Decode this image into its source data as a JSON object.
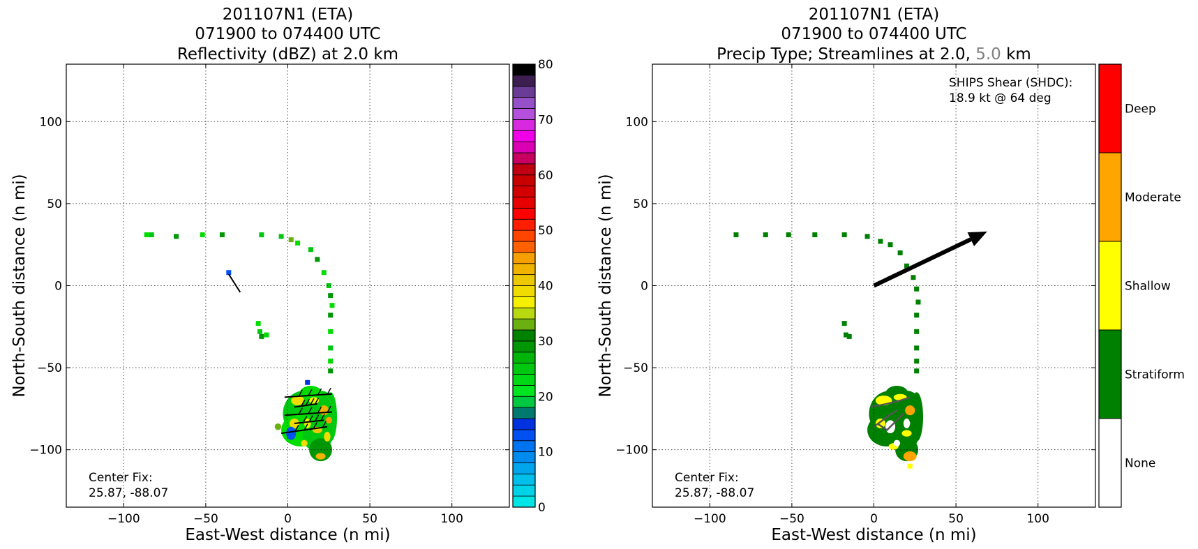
{
  "chart_data": [
    {
      "type": "heatmap",
      "title_lines": [
        "201107N1 (ETA)",
        "071900 to 074400 UTC",
        "Reflectivity (dBZ) at 2.0 km"
      ],
      "xlabel": "East-West distance (n mi)",
      "ylabel": "North-South distance (n mi)",
      "xlim": [
        -135,
        135
      ],
      "ylim": [
        -135,
        135
      ],
      "xticks": [
        -100,
        -50,
        0,
        50,
        100
      ],
      "yticks": [
        -100,
        -50,
        0,
        50,
        100
      ],
      "xtick_labels": [
        "−100",
        "−50",
        "0",
        "50",
        "100"
      ],
      "ytick_labels": [
        "−100",
        "−50",
        "0",
        "50",
        "100"
      ],
      "grid": true,
      "center_fix": [
        "Center Fix:",
        "25.87, -88.07"
      ],
      "colorbar": {
        "min": 0,
        "max": 80,
        "tick_values": [
          0,
          10,
          20,
          30,
          40,
          50,
          60,
          70,
          80
        ],
        "tick_labels": [
          "0",
          "10",
          "20",
          "30",
          "40",
          "50",
          "60",
          "70",
          "80"
        ],
        "colors": [
          "#00e5e5",
          "#00d2e8",
          "#00bfea",
          "#00a5ec",
          "#008cee",
          "#0073f0",
          "#0050f2",
          "#0032e0",
          "#007a6e",
          "#00c840",
          "#00e520",
          "#00d815",
          "#00c810",
          "#00b40a",
          "#009605",
          "#008200",
          "#6ab010",
          "#b8d810",
          "#f5f000",
          "#f0dc00",
          "#ebc800",
          "#f0b400",
          "#f5a000",
          "#ff6000",
          "#ff4500",
          "#ff1e00",
          "#ff0000",
          "#e60000",
          "#d20000",
          "#c80000",
          "#c00010",
          "#c80060",
          "#dc00b4",
          "#f000e6",
          "#d828e0",
          "#b450dc",
          "#9650c8",
          "#6a3c96",
          "#3c1e50",
          "#000000"
        ]
      },
      "echo_cells": [
        [
          -86,
          31,
          "#00dc00"
        ],
        [
          -83,
          31,
          "#00c810"
        ],
        [
          -68,
          30,
          "#009605"
        ],
        [
          -52,
          31,
          "#00dc00"
        ],
        [
          -40,
          31,
          "#009605"
        ],
        [
          -16,
          31,
          "#00c810"
        ],
        [
          -4,
          30,
          "#00c810"
        ],
        [
          2,
          28,
          "#6ab010"
        ],
        [
          6,
          26,
          "#00dc00"
        ],
        [
          14,
          22,
          "#00c810"
        ],
        [
          18,
          16,
          "#009605"
        ],
        [
          22,
          8,
          "#00dc00"
        ],
        [
          25,
          0,
          "#00c810"
        ],
        [
          26,
          -6,
          "#009605"
        ],
        [
          27,
          -12,
          "#00dc00"
        ],
        [
          26,
          -18,
          "#009605"
        ],
        [
          26,
          -28,
          "#00dc00"
        ],
        [
          26,
          -38,
          "#00c810"
        ],
        [
          26,
          -46,
          "#00dc00"
        ],
        [
          26,
          -52,
          "#009605"
        ],
        [
          -18,
          -23,
          "#00dc00"
        ],
        [
          -17,
          -28,
          "#00c810"
        ],
        [
          -16,
          -31,
          "#009605"
        ],
        [
          -13,
          -30,
          "#00dc00"
        ],
        [
          -36,
          8,
          "#0050f2"
        ],
        [
          12,
          -59,
          "#0032e0"
        ]
      ],
      "echo_blobs": [
        [
          10,
          -78,
          13,
          14,
          "#00c810"
        ],
        [
          8,
          -88,
          12,
          10,
          "#00dc00"
        ],
        [
          20,
          -72,
          8,
          8,
          "#00c810"
        ],
        [
          18,
          -92,
          9,
          9,
          "#00c810"
        ],
        [
          20,
          -100,
          7,
          7,
          "#009605"
        ],
        [
          14,
          -66,
          7,
          5,
          "#00dc00"
        ],
        [
          26,
          -80,
          4,
          15,
          "#00c810"
        ],
        [
          6,
          -70,
          4,
          3,
          "#f0dc00"
        ],
        [
          16,
          -70,
          3,
          2,
          "#f5f000"
        ],
        [
          22,
          -76,
          3,
          3,
          "#f0b400"
        ],
        [
          25,
          -82,
          2,
          2,
          "#f5a000"
        ],
        [
          4,
          -84,
          3,
          3,
          "#f0dc00"
        ],
        [
          12,
          -84,
          2,
          3,
          "#f5f000"
        ],
        [
          18,
          -88,
          3,
          2,
          "#ebc800"
        ],
        [
          24,
          -92,
          2,
          3,
          "#f0dc00"
        ],
        [
          20,
          -104,
          3,
          2,
          "#f0b400"
        ],
        [
          10,
          -96,
          2,
          2,
          "#f0dc00"
        ],
        [
          2,
          -90,
          3,
          4,
          "#0050f2"
        ],
        [
          -6,
          -86,
          2,
          2,
          "#6ab010"
        ]
      ],
      "barbs": [
        [
          -36,
          7,
          -29,
          -4
        ],
        [
          -2,
          -68,
          27,
          -66
        ],
        [
          -2,
          -79,
          27,
          -77
        ],
        [
          -4,
          -90,
          24,
          -86
        ],
        [
          4,
          -74,
          18,
          -72
        ],
        [
          4,
          -84,
          22,
          -82
        ]
      ]
    },
    {
      "type": "heatmap",
      "title_lines": [
        "201107N1 (ETA)",
        "071900 to 074400 UTC"
      ],
      "title_line3_parts": [
        "Precip Type; Streamlines at 2.0,",
        "5.0",
        "km"
      ],
      "xlabel": "East-West distance (n mi)",
      "ylabel": "North-South distance (n mi)",
      "xlim": [
        -135,
        135
      ],
      "ylim": [
        -135,
        135
      ],
      "xticks": [
        -100,
        -50,
        0,
        50,
        100
      ],
      "yticks": [
        -100,
        -50,
        0,
        50,
        100
      ],
      "xtick_labels": [
        "−100",
        "−50",
        "0",
        "50",
        "100"
      ],
      "ytick_labels": [
        "−100",
        "−50",
        "0",
        "50",
        "100"
      ],
      "grid": true,
      "center_fix": [
        "Center Fix:",
        "25.87, -88.07"
      ],
      "ships_shear": [
        "SHIPS Shear (SHDC):",
        "18.9 kt @ 64 deg"
      ],
      "shear_vector": {
        "speed_kt": 18.9,
        "direction_deg": 64,
        "x_end": 69,
        "y_end": 33
      },
      "colorbar": {
        "categories": [
          "None",
          "Stratiform",
          "Shallow",
          "Moderate",
          "Deep"
        ],
        "colors": [
          "#ffffff",
          "#008000",
          "#ffff00",
          "#ffa500",
          "#ff0000"
        ]
      },
      "precip_cells": [
        [
          -84,
          31,
          "#008000"
        ],
        [
          -66,
          31,
          "#008000"
        ],
        [
          -52,
          31,
          "#008000"
        ],
        [
          -36,
          31,
          "#008000"
        ],
        [
          -18,
          31,
          "#008000"
        ],
        [
          -4,
          30,
          "#008000"
        ],
        [
          4,
          27,
          "#008000"
        ],
        [
          10,
          25,
          "#008000"
        ],
        [
          16,
          20,
          "#008000"
        ],
        [
          20,
          12,
          "#008000"
        ],
        [
          24,
          5,
          "#008000"
        ],
        [
          26,
          -2,
          "#008000"
        ],
        [
          27,
          -10,
          "#008000"
        ],
        [
          26,
          -18,
          "#008000"
        ],
        [
          26,
          -28,
          "#008000"
        ],
        [
          26,
          -38,
          "#008000"
        ],
        [
          26,
          -46,
          "#008000"
        ],
        [
          26,
          -52,
          "#008000"
        ],
        [
          -18,
          -23,
          "#008000"
        ],
        [
          -17,
          -30,
          "#008000"
        ],
        [
          -15,
          -31,
          "#008000"
        ],
        [
          22,
          -110,
          "#ffff00"
        ]
      ],
      "precip_blobs": [
        [
          10,
          -78,
          13,
          14,
          "#008000"
        ],
        [
          8,
          -88,
          12,
          10,
          "#008000"
        ],
        [
          20,
          -72,
          8,
          8,
          "#008000"
        ],
        [
          18,
          -92,
          9,
          9,
          "#008000"
        ],
        [
          20,
          -100,
          7,
          7,
          "#008000"
        ],
        [
          14,
          -66,
          7,
          5,
          "#008000"
        ],
        [
          26,
          -80,
          4,
          15,
          "#008000"
        ],
        [
          6,
          -70,
          5,
          3,
          "#ffff00"
        ],
        [
          16,
          -68,
          4,
          2,
          "#ffff00"
        ],
        [
          22,
          -76,
          3,
          3,
          "#ffa500"
        ],
        [
          4,
          -84,
          3,
          3,
          "#ffff00"
        ],
        [
          20,
          -90,
          3,
          2,
          "#ffff00"
        ],
        [
          22,
          -104,
          4,
          3,
          "#ffa500"
        ],
        [
          12,
          -98,
          3,
          2,
          "#ffff00"
        ],
        [
          10,
          -86,
          3,
          4,
          "#ffffff"
        ],
        [
          20,
          -84,
          2,
          3,
          "#ffffff"
        ],
        [
          14,
          -96,
          2,
          2,
          "#ffffff"
        ]
      ],
      "streamlines": [
        [
          [
            -2,
            -74
          ],
          [
            8,
            -72
          ],
          [
            16,
            -70
          ],
          [
            22,
            -68
          ]
        ],
        [
          [
            0,
            -86
          ],
          [
            8,
            -80
          ],
          [
            14,
            -76
          ]
        ],
        [
          [
            2,
            -84
          ],
          [
            8,
            -88
          ],
          [
            14,
            -82
          ],
          [
            18,
            -78
          ]
        ]
      ]
    }
  ]
}
